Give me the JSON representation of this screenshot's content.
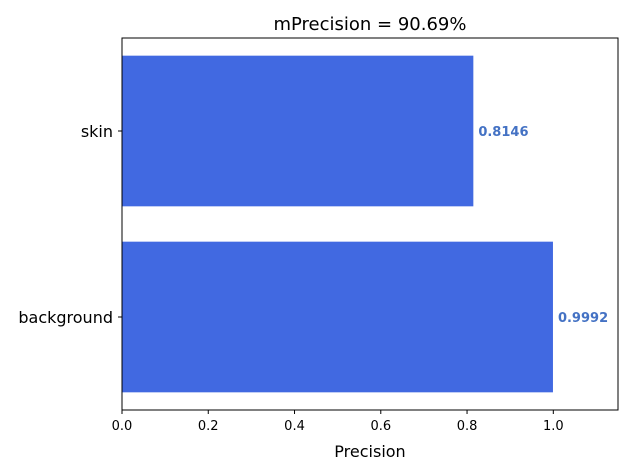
{
  "chart_data": {
    "type": "bar",
    "orientation": "horizontal",
    "title": "mPrecision = 90.69%",
    "xlabel": "Precision",
    "ylabel": "",
    "categories": [
      "skin",
      "background"
    ],
    "values": [
      0.8146,
      0.9992
    ],
    "value_labels": [
      "0.8146",
      "0.9992"
    ],
    "xlim": [
      0.0,
      1.15
    ],
    "xticks": [
      0.0,
      0.2,
      0.4,
      0.6,
      0.8,
      1.0
    ],
    "xtick_labels": [
      "0.0",
      "0.2",
      "0.4",
      "0.6",
      "0.8",
      "1.0"
    ],
    "grid": false,
    "bar_color": "#4169e1",
    "label_color": "#4472c4"
  }
}
